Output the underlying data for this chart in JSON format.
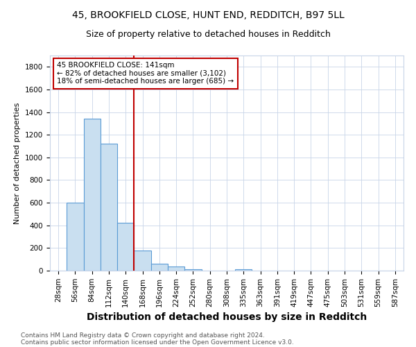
{
  "title1": "45, BROOKFIELD CLOSE, HUNT END, REDDITCH, B97 5LL",
  "title2": "Size of property relative to detached houses in Redditch",
  "xlabel": "Distribution of detached houses by size in Redditch",
  "ylabel": "Number of detached properties",
  "footnote1": "Contains HM Land Registry data © Crown copyright and database right 2024.",
  "footnote2": "Contains public sector information licensed under the Open Government Licence v3.0.",
  "bar_labels": [
    "28sqm",
    "56sqm",
    "84sqm",
    "112sqm",
    "140sqm",
    "168sqm",
    "196sqm",
    "224sqm",
    "252sqm",
    "280sqm",
    "308sqm",
    "335sqm",
    "363sqm",
    "391sqm",
    "419sqm",
    "447sqm",
    "475sqm",
    "503sqm",
    "531sqm",
    "559sqm",
    "587sqm"
  ],
  "bar_values": [
    0,
    600,
    1340,
    1120,
    420,
    175,
    60,
    35,
    10,
    0,
    0,
    10,
    0,
    0,
    0,
    0,
    0,
    0,
    0,
    0,
    0
  ],
  "bar_color": "#c9dff0",
  "bar_edge_color": "#5b9bd5",
  "vline_x": 4.5,
  "vline_color": "#c00000",
  "annotation_text": "45 BROOKFIELD CLOSE: 141sqm\n← 82% of detached houses are smaller (3,102)\n18% of semi-detached houses are larger (685) →",
  "annotation_box_color": "#ffffff",
  "annotation_box_edge_color": "#c00000",
  "ylim": [
    0,
    1900
  ],
  "yticks": [
    0,
    200,
    400,
    600,
    800,
    1000,
    1200,
    1400,
    1600,
    1800
  ],
  "bg_color": "#ffffff",
  "grid_color": "#c8d4e8",
  "title1_fontsize": 10,
  "title2_fontsize": 9,
  "xlabel_fontsize": 10,
  "ylabel_fontsize": 8,
  "tick_fontsize": 7.5,
  "annotation_fontsize": 7.5,
  "footnote_fontsize": 6.5
}
